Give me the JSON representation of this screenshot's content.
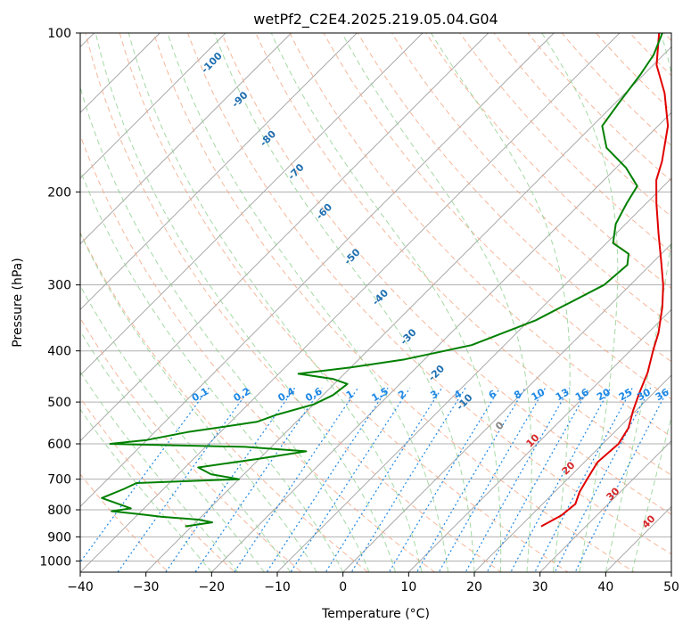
{
  "chart_data": {
    "type": "skew-t",
    "title": "wetPf2_C2E4.2025.219.05.04.G04",
    "xlabel": "Temperature (°C)",
    "ylabel": "Pressure (hPa)",
    "xlim": [
      -40,
      50
    ],
    "ylim": [
      1050,
      100
    ],
    "y_scale": "log",
    "skew_deg": 45,
    "grid": true,
    "x_ticks": [
      -40,
      -30,
      -20,
      -10,
      0,
      10,
      20,
      30,
      40,
      50
    ],
    "y_ticks": [
      100,
      200,
      300,
      400,
      500,
      600,
      700,
      800,
      900,
      1000
    ],
    "colors": {
      "temperature": "#e00000",
      "dewpoint": "#008000",
      "isotherm": "#a0a0a0",
      "dry_adiabat": "#f4a582",
      "moist_adiabat": "#8fcf8f",
      "mixing_ratio": "#1e88e5",
      "dry_label": "#1f6fb0",
      "moist_label": "#d62728"
    },
    "dry_adiabat_labels": [
      "-100",
      "-90",
      "-80",
      "-70",
      "-60",
      "-50",
      "-40",
      "-30",
      "-20",
      "-10",
      "0"
    ],
    "moist_adiabat_labels": [
      "10",
      "20",
      "30",
      "40"
    ],
    "mixing_ratio_labels": [
      "0.1",
      "0.2",
      "0.4",
      "0.6",
      "1",
      "1.5",
      "2",
      "3",
      "4",
      "6",
      "8",
      "10",
      "13",
      "16",
      "20",
      "25",
      "30",
      "36"
    ],
    "series": [
      {
        "name": "Temperature",
        "points": [
          [
            860,
            23.2
          ],
          [
            820,
            24.6
          ],
          [
            780,
            25.0
          ],
          [
            740,
            23.8
          ],
          [
            700,
            23.0
          ],
          [
            650,
            22.0
          ],
          [
            600,
            22.4
          ],
          [
            560,
            21.5
          ],
          [
            520,
            19.6
          ],
          [
            480,
            17.8
          ],
          [
            440,
            16.0
          ],
          [
            400,
            13.5
          ],
          [
            370,
            11.6
          ],
          [
            330,
            8.2
          ],
          [
            300,
            5.0
          ],
          [
            270,
            1.0
          ],
          [
            240,
            -3.5
          ],
          [
            210,
            -8.5
          ],
          [
            190,
            -12.0
          ],
          [
            175,
            -14.0
          ],
          [
            150,
            -18.5
          ],
          [
            130,
            -24.0
          ],
          [
            115,
            -29.5
          ],
          [
            100,
            -34.0
          ]
        ]
      },
      {
        "name": "Dewpoint",
        "points": [
          [
            860,
            -31.0
          ],
          [
            845,
            -27.5
          ],
          [
            835,
            -30.0
          ],
          [
            825,
            -36.0
          ],
          [
            815,
            -40.0
          ],
          [
            805,
            -44.5
          ],
          [
            795,
            -42.0
          ],
          [
            760,
            -48.0
          ],
          [
            730,
            -46.0
          ],
          [
            712,
            -45.0
          ],
          [
            700,
            -30.0
          ],
          [
            685,
            -35.0
          ],
          [
            665,
            -38.0
          ],
          [
            640,
            -30.0
          ],
          [
            620,
            -24.0
          ],
          [
            608,
            -34.0
          ],
          [
            600,
            -55.0
          ],
          [
            590,
            -50.0
          ],
          [
            570,
            -45.0
          ],
          [
            545,
            -36.0
          ],
          [
            528,
            -34.0
          ],
          [
            505,
            -30.0
          ],
          [
            485,
            -28.5
          ],
          [
            462,
            -28.0
          ],
          [
            452,
            -31.0
          ],
          [
            442,
            -37.0
          ],
          [
            430,
            -30.0
          ],
          [
            415,
            -23.0
          ],
          [
            390,
            -15.0
          ],
          [
            350,
            -9.0
          ],
          [
            300,
            -4.0
          ],
          [
            275,
            -3.5
          ],
          [
            262,
            -5.0
          ],
          [
            250,
            -9.0
          ],
          [
            230,
            -11.5
          ],
          [
            210,
            -13.0
          ],
          [
            195,
            -14.0
          ],
          [
            180,
            -18.5
          ],
          [
            165,
            -24.5
          ],
          [
            150,
            -28.5
          ],
          [
            135,
            -29.5
          ],
          [
            120,
            -30.5
          ],
          [
            110,
            -31.5
          ],
          [
            100,
            -33.5
          ]
        ]
      }
    ]
  }
}
